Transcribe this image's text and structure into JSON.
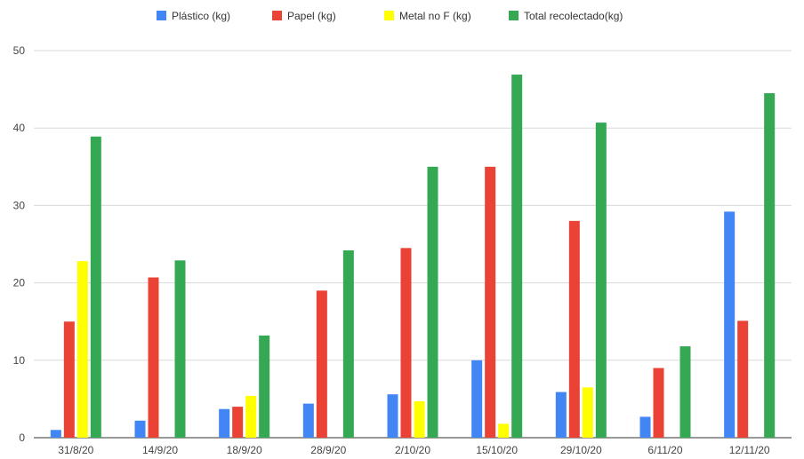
{
  "chart_data": {
    "type": "bar",
    "categories": [
      "31/8/20",
      "14/9/20",
      "18/9/20",
      "28/9/20",
      "2/10/20",
      "15/10/20",
      "29/10/20",
      "6/11/20",
      "12/11/20"
    ],
    "series": [
      {
        "name": "Plástico (kg)",
        "color": "#4285f4",
        "values": [
          1.0,
          2.2,
          3.7,
          4.4,
          5.6,
          10.0,
          5.9,
          2.7,
          29.2
        ]
      },
      {
        "name": "Papel (kg)",
        "color": "#ea4335",
        "values": [
          15.0,
          20.7,
          4.0,
          19.0,
          24.5,
          35.0,
          28.0,
          9.0,
          15.1
        ]
      },
      {
        "name": "Metal no F (kg)",
        "color": "#ffff00",
        "values": [
          22.8,
          0,
          5.4,
          0,
          4.7,
          1.8,
          6.5,
          0,
          0
        ]
      },
      {
        "name": "Total recolectado(kg)",
        "color": "#34a853",
        "values": [
          38.9,
          22.9,
          13.2,
          24.2,
          35.0,
          46.9,
          40.7,
          11.8,
          44.5
        ]
      }
    ],
    "ylim": [
      0,
      50
    ],
    "yticks": [
      0,
      10,
      20,
      30,
      40,
      50
    ],
    "grid": true,
    "legend_position": "top"
  }
}
